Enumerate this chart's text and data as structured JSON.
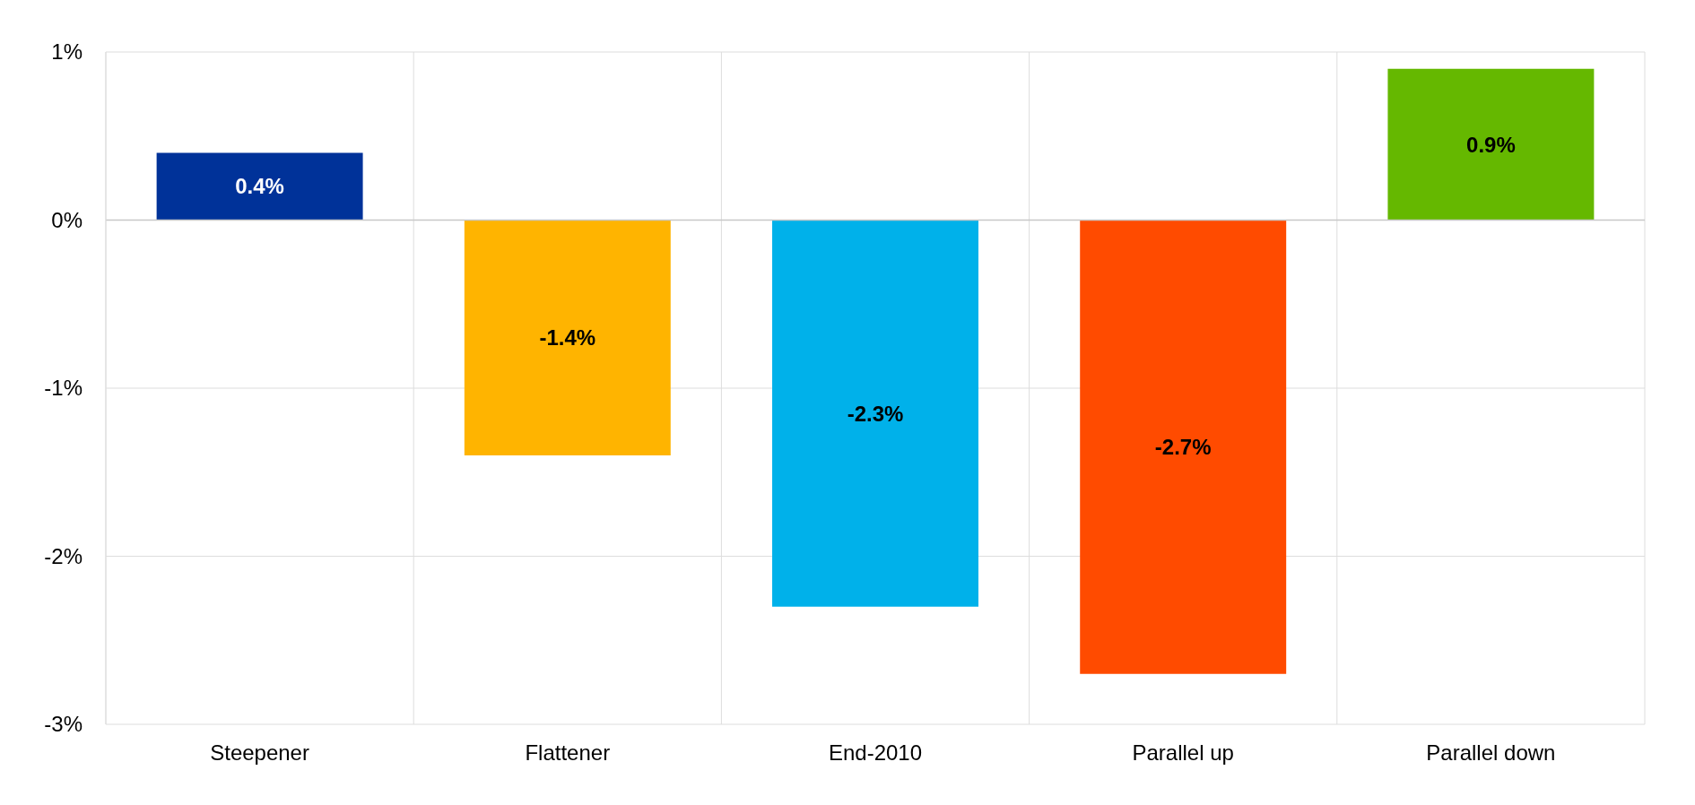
{
  "chart_data": {
    "type": "bar",
    "categories": [
      "Steepener",
      "Flattener",
      "End-2010",
      "Parallel up",
      "Parallel down"
    ],
    "values": [
      0.4,
      -1.4,
      -2.3,
      -2.7,
      0.9
    ],
    "colors": [
      "#003299",
      "#ffb400",
      "#00b1ea",
      "#ff4b00",
      "#65b800"
    ],
    "value_labels": [
      "0.4%",
      "-1.4%",
      "-2.3%",
      "-2.7%",
      "0.9%"
    ],
    "ylim": [
      -3,
      1
    ],
    "yticks": [
      {
        "value": -3,
        "label": "-3%"
      },
      {
        "value": -2,
        "label": "-2%"
      },
      {
        "value": -1,
        "label": "-1%"
      },
      {
        "value": 0,
        "label": "0%"
      },
      {
        "value": 1,
        "label": "1%"
      }
    ],
    "grid": true
  }
}
